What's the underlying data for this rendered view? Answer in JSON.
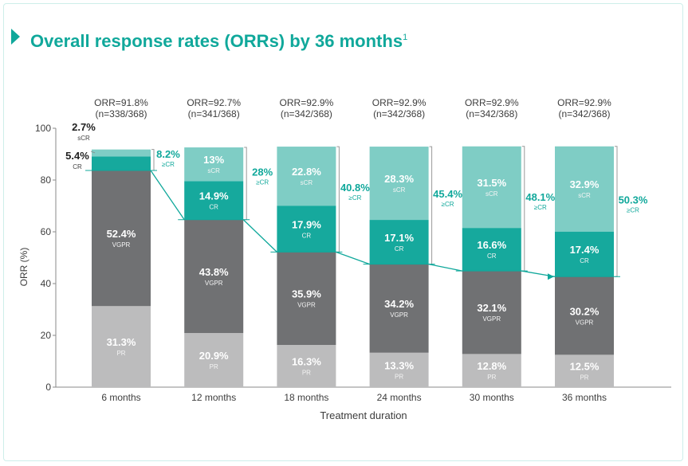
{
  "header": {
    "title": "Overall response rates (ORRs) by 36 months",
    "footnote": "1"
  },
  "colors": {
    "accent": "#10a89b",
    "scr": "#7fcdc5",
    "cr": "#16a99d",
    "vgpr": "#707173",
    "pr": "#bcbcbd",
    "text": "#3d3d3d"
  },
  "chart_data": {
    "type": "bar",
    "stacked": true,
    "title": "Overall response rates (ORRs) by 36 months",
    "xlabel": "Treatment duration",
    "ylabel": "ORR (%)",
    "ylim": [
      0,
      100
    ],
    "yticks": [
      0,
      20,
      40,
      60,
      80,
      100
    ],
    "categories": [
      "6 months",
      "12 months",
      "18 months",
      "24 months",
      "30 months",
      "36 months"
    ],
    "series": [
      {
        "name": "PR",
        "labels": [
          "31.3%",
          "20.9%",
          "16.3%",
          "13.3%",
          "12.8%",
          "12.5%"
        ],
        "values": [
          31.3,
          20.9,
          16.3,
          13.3,
          12.8,
          12.5
        ]
      },
      {
        "name": "VGPR",
        "labels": [
          "52.4%",
          "43.8%",
          "35.9%",
          "34.2%",
          "32.1%",
          "30.2%"
        ],
        "values": [
          52.4,
          43.8,
          35.9,
          34.2,
          32.1,
          30.2
        ]
      },
      {
        "name": "CR",
        "labels": [
          "5.4%",
          "14.9%",
          "17.9%",
          "17.1%",
          "16.6%",
          "17.4%"
        ],
        "values": [
          5.4,
          14.9,
          17.9,
          17.1,
          16.6,
          17.4
        ]
      },
      {
        "name": "sCR",
        "labels": [
          "2.7%",
          "13%",
          "22.8%",
          "28.3%",
          "31.5%",
          "32.9%"
        ],
        "values": [
          2.7,
          13,
          22.8,
          28.3,
          31.5,
          32.9
        ]
      }
    ],
    "orr_labels": [
      "ORR=91.8%",
      "ORR=92.7%",
      "ORR=92.9%",
      "ORR=92.9%",
      "ORR=92.9%",
      "ORR=92.9%"
    ],
    "n_labels": [
      "(n=338/368)",
      "(n=341/368)",
      "(n=342/368)",
      "(n=342/368)",
      "(n=342/368)",
      "(n=342/368)"
    ],
    "gecr_labels": [
      "8.2%",
      "28%",
      "40.8%",
      "45.4%",
      "48.1%",
      "50.3%"
    ],
    "gecr_values": [
      8.2,
      28,
      40.8,
      45.4,
      48.1,
      50.3
    ],
    "gecr_sublabel": "≥CR"
  }
}
